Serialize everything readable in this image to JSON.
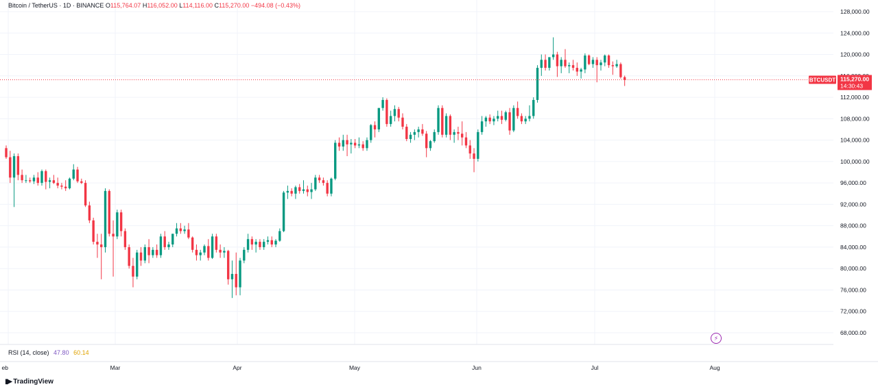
{
  "header": {
    "symbol": "Bitcoin / TetherUS · 1D · BINANCE",
    "o_label": "O",
    "o": "115,764.07",
    "h_label": "H",
    "h": "116,052.00",
    "l_label": "L",
    "l": "114,116.00",
    "c_label": "C",
    "c": "115,270.00",
    "change": "−494.08 (−0.43%)"
  },
  "price_tag": {
    "label": "BTCUSDT",
    "price": "115,270.00",
    "countdown": "14:30:43"
  },
  "rsi": {
    "label": "RSI (14, close)",
    "value1": "47.80",
    "value2": "60.14"
  },
  "branding": {
    "name": "TradingView"
  },
  "flash_icon": "lightning-icon",
  "colors": {
    "up": "#089981",
    "down": "#f23645",
    "grid": "#f0f3fa",
    "axis_text": "#131722",
    "rsi1": "#7e57c2",
    "rsi2": "#e0a300"
  },
  "chart_data": {
    "type": "candlestick",
    "title": "",
    "x_tick_labels": [
      "eb",
      "Mar",
      "Apr",
      "May",
      "Jun",
      "Jul",
      "Aug"
    ],
    "y_ticks": [
      68000,
      72000,
      76000,
      80000,
      84000,
      88000,
      92000,
      96000,
      100000,
      104000,
      108000,
      112000,
      116000,
      120000,
      124000,
      128000
    ],
    "y_tick_labels": [
      "68,000.00",
      "72,000.00",
      "76,000.00",
      "80,000.00",
      "84,000.00",
      "88,000.00",
      "92,000.00",
      "96,000.00",
      "100,000.00",
      "104,000.00",
      "108,000.00",
      "112,000.00",
      "116,000.00",
      "120,000.00",
      "124,000.00",
      "128,000.00"
    ],
    "ylim": [
      66000,
      130000
    ],
    "last_price": 115270,
    "grid": true,
    "candles": [
      [
        102500,
        103000,
        100500,
        100800
      ],
      [
        100800,
        102000,
        96000,
        97000
      ],
      [
        97000,
        101500,
        91500,
        101000
      ],
      [
        101000,
        101500,
        96500,
        97500
      ],
      [
        97500,
        98500,
        96000,
        96500
      ],
      [
        96500,
        97500,
        96000,
        96500
      ],
      [
        96500,
        97000,
        96000,
        96300
      ],
      [
        96300,
        97500,
        95800,
        97000
      ],
      [
        97000,
        98000,
        95500,
        96000
      ],
      [
        96000,
        98500,
        95500,
        98200
      ],
      [
        98200,
        98500,
        94800,
        96200
      ],
      [
        96200,
        97000,
        95000,
        96500
      ],
      [
        96500,
        97500,
        95800,
        96000
      ],
      [
        96000,
        97000,
        95000,
        95500
      ],
      [
        95500,
        96000,
        94800,
        95300
      ],
      [
        95300,
        96500,
        94500,
        95000
      ],
      [
        95000,
        97000,
        94800,
        96800
      ],
      [
        96800,
        99500,
        96500,
        98500
      ],
      [
        98500,
        99000,
        96000,
        96300
      ],
      [
        96300,
        96800,
        95800,
        96000
      ],
      [
        96000,
        96500,
        91500,
        91800
      ],
      [
        91800,
        92500,
        88500,
        89000
      ],
      [
        89000,
        89500,
        84500,
        85000
      ],
      [
        85000,
        86500,
        82000,
        84500
      ],
      [
        84500,
        86500,
        78000,
        84000
      ],
      [
        84000,
        95000,
        83000,
        94500
      ],
      [
        94500,
        94800,
        86000,
        86500
      ],
      [
        86500,
        89000,
        78500,
        86000
      ],
      [
        86000,
        91000,
        85500,
        90500
      ],
      [
        90500,
        91000,
        86000,
        87000
      ],
      [
        87000,
        87500,
        83500,
        84000
      ],
      [
        84000,
        84500,
        80000,
        80500
      ],
      [
        80500,
        82000,
        76500,
        78500
      ],
      [
        78500,
        83500,
        78000,
        83000
      ],
      [
        83000,
        84000,
        80500,
        81500
      ],
      [
        81500,
        84500,
        81000,
        84000
      ],
      [
        84000,
        85500,
        81000,
        82500
      ],
      [
        82500,
        84000,
        82000,
        83500
      ],
      [
        83500,
        84500,
        82000,
        82500
      ],
      [
        82500,
        86500,
        82000,
        86000
      ],
      [
        86000,
        87000,
        83500,
        84000
      ],
      [
        84000,
        85000,
        83500,
        84500
      ],
      [
        84500,
        86500,
        84000,
        86500
      ],
      [
        86500,
        88500,
        86000,
        87500
      ],
      [
        87500,
        88500,
        86500,
        87000
      ],
      [
        87000,
        88000,
        86500,
        87300
      ],
      [
        87300,
        88500,
        85500,
        85800
      ],
      [
        85800,
        86000,
        83000,
        83500
      ],
      [
        83500,
        84500,
        81500,
        82500
      ],
      [
        82500,
        83500,
        81500,
        83000
      ],
      [
        83000,
        84500,
        82500,
        84200
      ],
      [
        84200,
        85500,
        81500,
        82000
      ],
      [
        82000,
        86500,
        81800,
        86000
      ],
      [
        86000,
        86500,
        83000,
        83500
      ],
      [
        83500,
        84500,
        82000,
        83000
      ],
      [
        83000,
        84000,
        82000,
        83300
      ],
      [
        83300,
        83500,
        77000,
        78000
      ],
      [
        78000,
        81500,
        74500,
        79000
      ],
      [
        79000,
        83000,
        75000,
        76500
      ],
      [
        76500,
        82000,
        75000,
        81500
      ],
      [
        81500,
        84000,
        81000,
        83500
      ],
      [
        83500,
        86500,
        83000,
        85500
      ],
      [
        85500,
        86000,
        83500,
        84500
      ],
      [
        84500,
        85500,
        83000,
        85000
      ],
      [
        85000,
        85500,
        83500,
        84000
      ],
      [
        84000,
        85500,
        83500,
        85000
      ],
      [
        85000,
        86000,
        84500,
        85300
      ],
      [
        85300,
        86000,
        84000,
        84500
      ],
      [
        84500,
        85500,
        84000,
        85200
      ],
      [
        85200,
        87500,
        85000,
        87000
      ],
      [
        87000,
        94500,
        86800,
        94200
      ],
      [
        94200,
        95500,
        93000,
        94500
      ],
      [
        94500,
        95000,
        93500,
        94000
      ],
      [
        94000,
        95500,
        93000,
        95200
      ],
      [
        95200,
        95800,
        94000,
        94500
      ],
      [
        94500,
        96500,
        94000,
        94800
      ],
      [
        94800,
        95500,
        93500,
        94300
      ],
      [
        94300,
        96000,
        93000,
        94800
      ],
      [
        94800,
        97500,
        94500,
        97000
      ],
      [
        97000,
        97500,
        96000,
        96500
      ],
      [
        96500,
        97000,
        95500,
        96000
      ],
      [
        96000,
        96500,
        93500,
        94000
      ],
      [
        94000,
        97000,
        93500,
        96800
      ],
      [
        96800,
        104000,
        96500,
        103500
      ],
      [
        103500,
        104500,
        102000,
        102800
      ],
      [
        102800,
        105000,
        102000,
        104000
      ],
      [
        104000,
        105000,
        101000,
        103200
      ],
      [
        103200,
        104200,
        101500,
        103500
      ],
      [
        103500,
        104200,
        102500,
        103000
      ],
      [
        103000,
        104500,
        102500,
        103200
      ],
      [
        103200,
        103800,
        102000,
        102500
      ],
      [
        102500,
        104500,
        102000,
        104000
      ],
      [
        104000,
        107000,
        103500,
        106800
      ],
      [
        106800,
        107500,
        104500,
        106000
      ],
      [
        106000,
        110000,
        105500,
        110000
      ],
      [
        110000,
        112000,
        109500,
        111500
      ],
      [
        111500,
        111800,
        106500,
        107000
      ],
      [
        107000,
        109500,
        106500,
        108500
      ],
      [
        108500,
        110500,
        107500,
        109800
      ],
      [
        109800,
        110200,
        107500,
        108200
      ],
      [
        108200,
        109000,
        106000,
        106500
      ],
      [
        106500,
        107000,
        103800,
        104200
      ],
      [
        104200,
        105500,
        103500,
        105000
      ],
      [
        105000,
        106000,
        104000,
        105500
      ],
      [
        105500,
        106500,
        104500,
        106000
      ],
      [
        106000,
        107000,
        104800,
        105200
      ],
      [
        105200,
        105700,
        100800,
        102500
      ],
      [
        102500,
        104000,
        102000,
        103800
      ],
      [
        103800,
        106000,
        103500,
        105500
      ],
      [
        105500,
        110500,
        105000,
        110000
      ],
      [
        110000,
        110500,
        104500,
        105000
      ],
      [
        105000,
        109000,
        104500,
        108500
      ],
      [
        108500,
        108800,
        104000,
        105000
      ],
      [
        105000,
        106000,
        103500,
        105500
      ],
      [
        105500,
        106500,
        104000,
        105200
      ],
      [
        105200,
        107500,
        103000,
        104500
      ],
      [
        104500,
        105500,
        102500,
        103000
      ],
      [
        103000,
        104000,
        100500,
        101500
      ],
      [
        101500,
        102500,
        98000,
        100500
      ],
      [
        100500,
        106000,
        100000,
        105500
      ],
      [
        105500,
        108500,
        105000,
        107500
      ],
      [
        107500,
        108500,
        106500,
        108200
      ],
      [
        108200,
        108800,
        107000,
        107500
      ],
      [
        107500,
        108500,
        106800,
        108000
      ],
      [
        108000,
        109500,
        107500,
        108500
      ],
      [
        108500,
        109500,
        107000,
        107800
      ],
      [
        107800,
        109500,
        107500,
        109200
      ],
      [
        109200,
        110000,
        105000,
        105800
      ],
      [
        105800,
        110500,
        105500,
        110000
      ],
      [
        110000,
        111200,
        108000,
        108500
      ],
      [
        108500,
        109000,
        107000,
        107500
      ],
      [
        107500,
        108500,
        107000,
        108000
      ],
      [
        108000,
        110500,
        107500,
        108500
      ],
      [
        108500,
        112000,
        108000,
        111500
      ],
      [
        111500,
        118000,
        111000,
        117500
      ],
      [
        117500,
        120000,
        116000,
        119000
      ],
      [
        119000,
        120000,
        117000,
        117500
      ],
      [
        117500,
        119500,
        117000,
        119500
      ],
      [
        119500,
        123200,
        119000,
        120000
      ],
      [
        120000,
        120500,
        115800,
        117800
      ],
      [
        117800,
        119500,
        116500,
        119000
      ],
      [
        119000,
        121000,
        117500,
        117800
      ],
      [
        117800,
        118500,
        116500,
        118000
      ],
      [
        118000,
        119000,
        117000,
        117500
      ],
      [
        117500,
        118500,
        116000,
        116800
      ],
      [
        116800,
        117500,
        115500,
        117200
      ],
      [
        117200,
        120200,
        116500,
        119800
      ],
      [
        119800,
        120000,
        118000,
        118200
      ],
      [
        118200,
        119500,
        117500,
        119000
      ],
      [
        119000,
        119500,
        114800,
        118000
      ],
      [
        118000,
        119000,
        117000,
        118500
      ],
      [
        118500,
        120000,
        117800,
        119800
      ],
      [
        119800,
        120000,
        117500,
        118000
      ],
      [
        118000,
        118700,
        116200,
        117800
      ],
      [
        117800,
        119000,
        117500,
        118200
      ],
      [
        118200,
        118500,
        115500,
        115764
      ],
      [
        115764,
        116052,
        114116,
        115270
      ]
    ]
  }
}
